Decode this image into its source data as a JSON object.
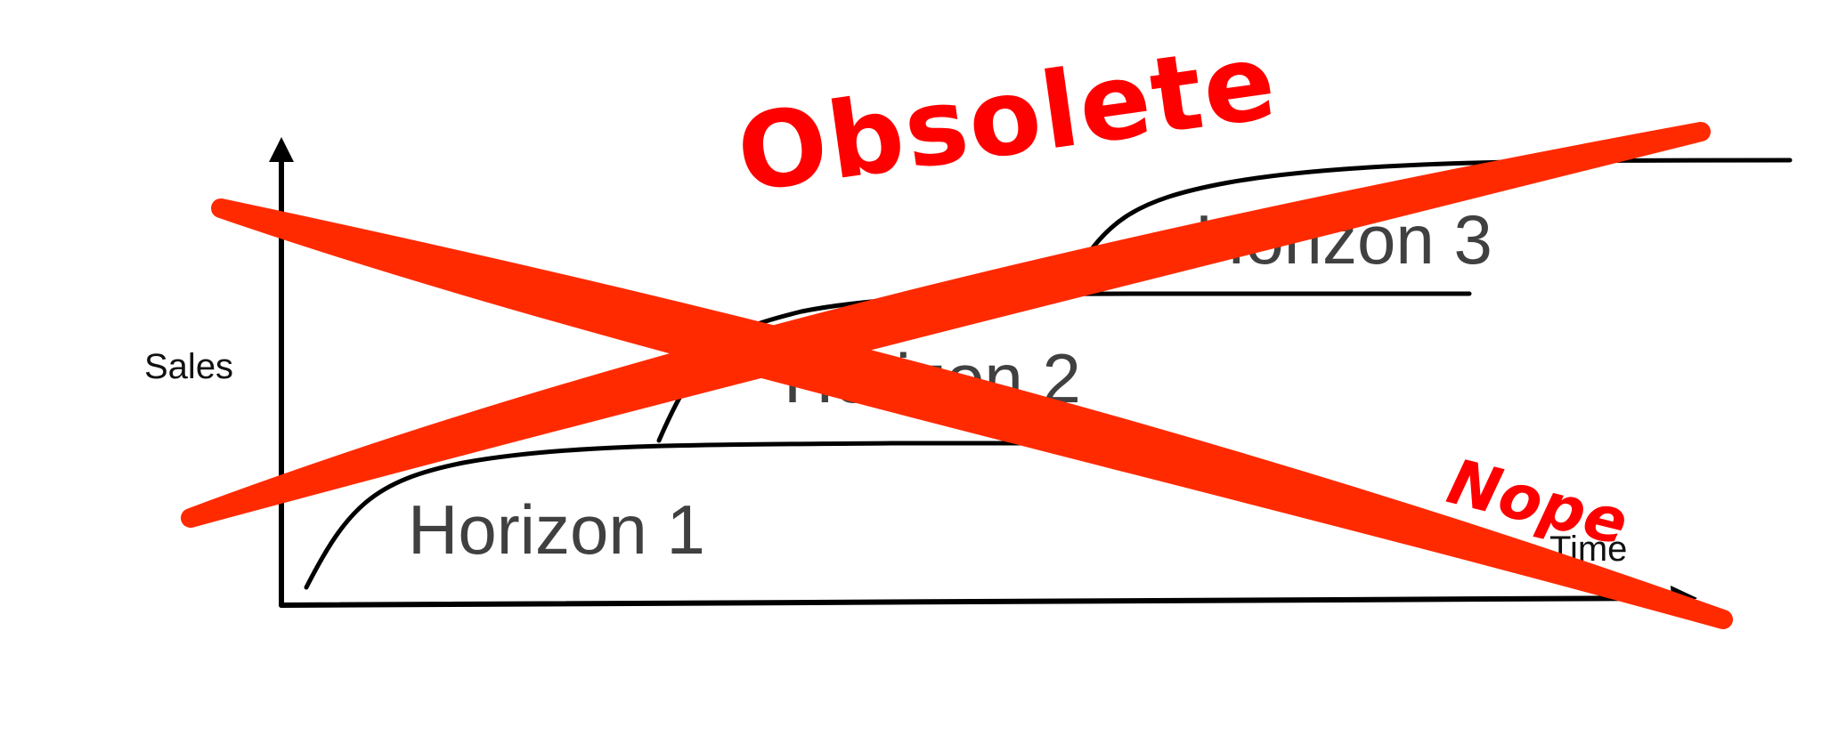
{
  "diagram": {
    "axes": {
      "y_label": "Sales",
      "x_label": "Time"
    },
    "horizons": [
      {
        "label": "Horizon 1"
      },
      {
        "label": "Horizon 2"
      },
      {
        "label": "Horizon 3"
      }
    ]
  },
  "annotations": {
    "obsolete_text": "Obsolete",
    "nope_text": "Nope",
    "cross_color": "#ff2a00",
    "text_color": "#ff0000"
  },
  "colors": {
    "line": "#000000",
    "horizon_text": "#404040"
  }
}
